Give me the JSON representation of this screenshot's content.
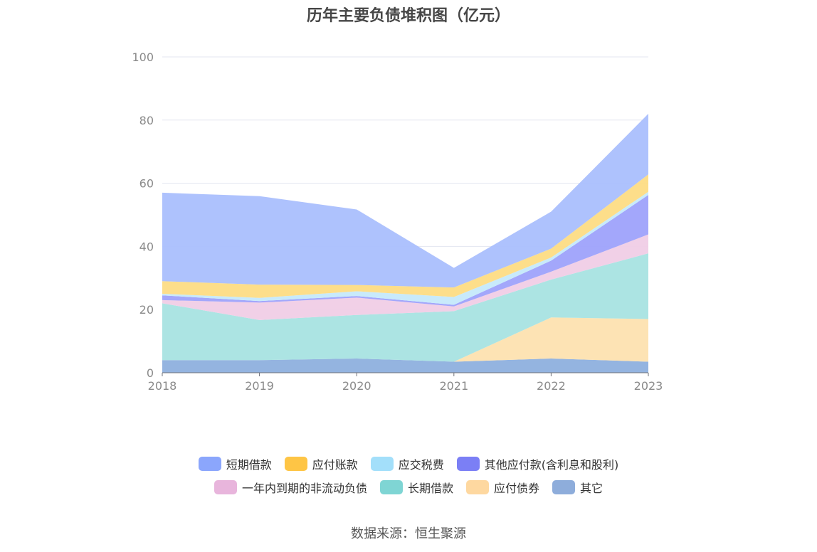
{
  "title": "历年主要负债堆积图（亿元）",
  "source": "数据来源：恒生聚源",
  "chart_data": {
    "type": "area",
    "stacked": true,
    "x": [
      "2018",
      "2019",
      "2020",
      "2021",
      "2022",
      "2023"
    ],
    "ylim": [
      0,
      100
    ],
    "yticks": [
      0,
      20,
      40,
      60,
      80,
      100
    ],
    "grid": true,
    "legend_position": "bottom",
    "series": [
      {
        "name": "其它",
        "color": "#8eb0de",
        "values": [
          4.0,
          4.0,
          4.5,
          3.5,
          4.5,
          3.5
        ]
      },
      {
        "name": "应付债券",
        "color": "#fde2b0",
        "values": [
          0,
          0,
          0,
          0,
          13.0,
          13.5
        ]
      },
      {
        "name": "长期借款",
        "color": "#a8e3e2",
        "values": [
          18.0,
          12.7,
          13.8,
          16.0,
          12.0,
          20.8
        ]
      },
      {
        "name": "一年内到期的非流动负债",
        "color": "#f0cde6",
        "values": [
          1.0,
          5.5,
          5.5,
          1.5,
          2.5,
          6.0
        ]
      },
      {
        "name": "其他应付款(含利息和股利)",
        "color": "#9ea2fb",
        "values": [
          1.5,
          0.5,
          0.5,
          0.5,
          3.5,
          12.5
        ]
      },
      {
        "name": "应交税费",
        "color": "#c5e9fb",
        "values": [
          0.5,
          1.0,
          1.5,
          2.5,
          1.0,
          1.0
        ]
      },
      {
        "name": "应付账款",
        "color": "#fddc84",
        "values": [
          4.0,
          4.2,
          2.0,
          3.0,
          2.8,
          5.5
        ]
      },
      {
        "name": "短期借款",
        "color": "#aabffd",
        "values": [
          28.0,
          28.0,
          23.9,
          6.2,
          11.7,
          19.2
        ]
      }
    ]
  },
  "legend": {
    "row1": [
      {
        "label": "短期借款",
        "color": "#8ba6fc"
      },
      {
        "label": "应付账款",
        "color": "#fec545"
      },
      {
        "label": "应交税费",
        "color": "#a3dffa"
      },
      {
        "label": "其他应付款(含利息和股利)",
        "color": "#7b7ff5"
      }
    ],
    "row2": [
      {
        "label": "一年内到期的非流动负债",
        "color": "#e8b5dc"
      },
      {
        "label": "长期借款",
        "color": "#7fd5d4"
      },
      {
        "label": "应付债券",
        "color": "#fed8a0"
      },
      {
        "label": "其它",
        "color": "#8eaddb"
      }
    ]
  }
}
